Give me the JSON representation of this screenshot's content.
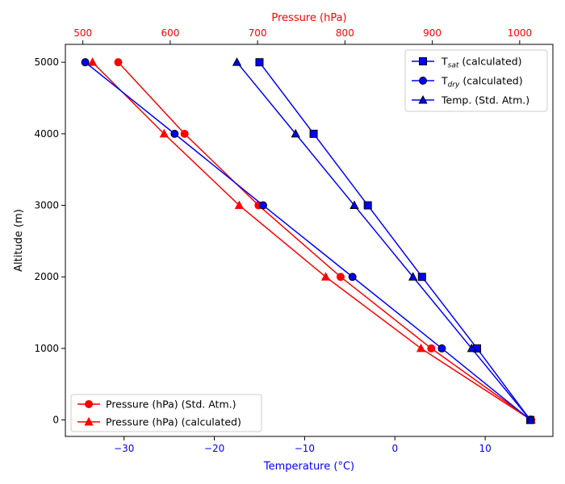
{
  "chart_data": {
    "type": "line",
    "title": "",
    "ylabel": "Altitude (m)",
    "xlabel_bottom": "Temperature (°C)",
    "xlabel_top": "Pressure (hPa)",
    "ylim": [
      -230,
      5250
    ],
    "xlim_bottom": [
      -36.5,
      17.5
    ],
    "xlim_top": [
      480,
      1038
    ],
    "yticks": [
      0,
      1000,
      2000,
      3000,
      4000,
      5000
    ],
    "xticks_bottom": [
      -30,
      -20,
      -10,
      0,
      10
    ],
    "xticks_top": [
      500,
      600,
      700,
      800,
      900,
      1000
    ],
    "altitude": [
      0,
      1000,
      2000,
      3000,
      4000,
      5000
    ],
    "temperature_series": [
      {
        "label_main": "T",
        "label_sub": "sat",
        "label_rest": " (calculated)",
        "marker": "square",
        "values": [
          15.0,
          9.1,
          3.0,
          -3.0,
          -9.0,
          -15.0
        ]
      },
      {
        "label_main": "T",
        "label_sub": "dry",
        "label_rest": " (calculated)",
        "marker": "circle",
        "values": [
          15.0,
          5.2,
          -4.7,
          -14.6,
          -24.4,
          -34.3
        ]
      },
      {
        "label_main": "Temp. (Std. Atm.)",
        "label_sub": "",
        "label_rest": "",
        "marker": "triangle",
        "values": [
          15.0,
          8.5,
          2.0,
          -4.5,
          -11.0,
          -17.5
        ]
      }
    ],
    "pressure_series": [
      {
        "label": "Pressure (hPa) (Std. Atm.)",
        "marker": "circle",
        "values": [
          1013.25,
          898.8,
          795.0,
          701.1,
          616.4,
          540.5
        ]
      },
      {
        "label": "Pressure (hPa) (calculated)",
        "marker": "triangle",
        "values": [
          1013.25,
          887.0,
          778.0,
          679.0,
          593.0,
          511.0
        ]
      }
    ],
    "colors": {
      "temperature": "#0000ff",
      "pressure": "#ff0000",
      "axis_bottom": "#0000ff",
      "axis_top": "#ff0000"
    },
    "legend_temperature_position": "upper right",
    "legend_pressure_position": "lower left",
    "grid": false
  }
}
